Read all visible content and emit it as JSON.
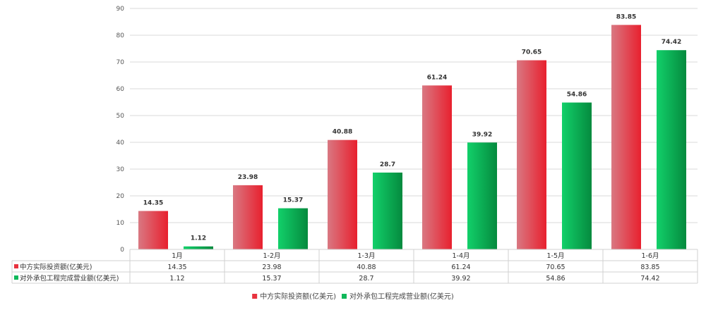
{
  "chart_data": {
    "type": "bar",
    "categories": [
      "1月",
      "1-2月",
      "1-3月",
      "1-4月",
      "1-5月",
      "1-6月"
    ],
    "series": [
      {
        "name": "中方实际投资额(亿美元)",
        "values": [
          14.35,
          23.98,
          40.88,
          61.24,
          70.65,
          83.85
        ],
        "color": "#e8323e"
      },
      {
        "name": "对外承包工程完成营业额(亿美元)",
        "values": [
          1.12,
          15.37,
          28.7,
          39.92,
          54.86,
          74.42
        ],
        "color": "#0fb85a"
      }
    ],
    "ylim": [
      0,
      90
    ],
    "yticks": [
      0,
      10,
      20,
      30,
      40,
      50,
      60,
      70,
      80,
      90
    ],
    "value_labels": [
      [
        "14.35",
        "23.98",
        "40.88",
        "61.24",
        "70.65",
        "83.85"
      ],
      [
        "1.12",
        "15.37",
        "28.7",
        "39.92",
        "54.86",
        "74.42"
      ]
    ],
    "grid": true,
    "legend": "bottom",
    "data_table": true
  }
}
